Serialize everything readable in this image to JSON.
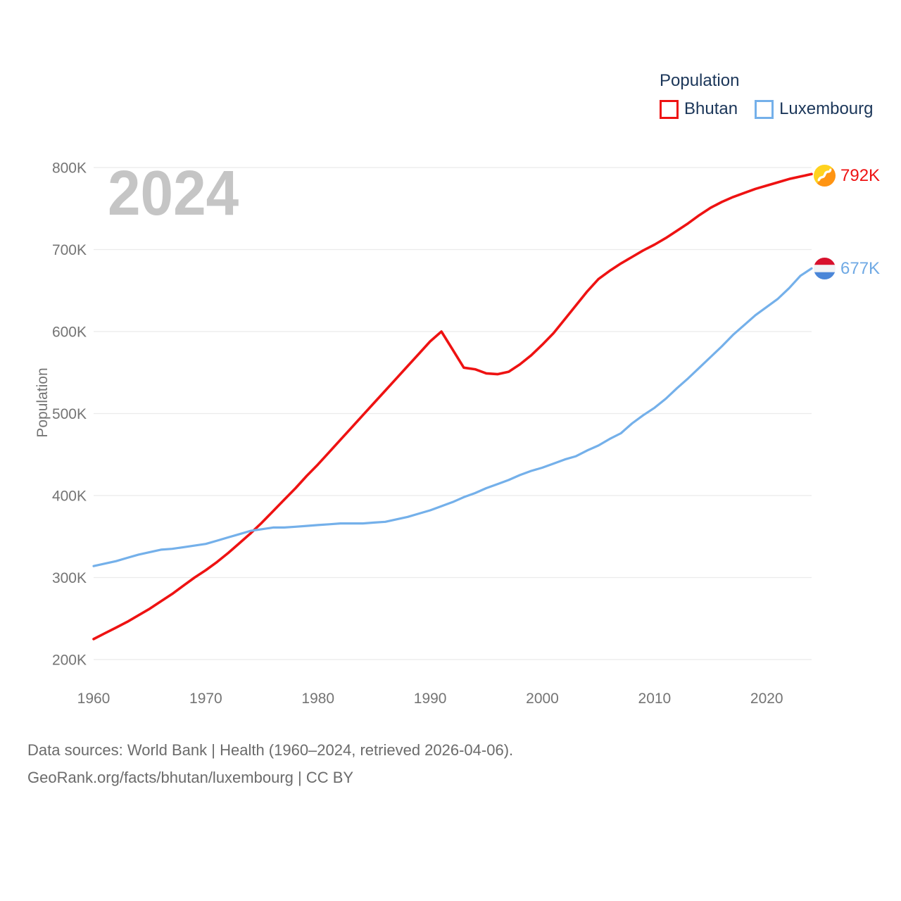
{
  "legend": {
    "title": "Population",
    "items": [
      {
        "label": "Bhutan",
        "color": "#ee1212"
      },
      {
        "label": "Luxembourg",
        "color": "#74b0ea"
      }
    ]
  },
  "watermark": "2024",
  "y_axis": {
    "title": "Population"
  },
  "end_labels": [
    {
      "series": "Bhutan",
      "text": "792K",
      "color": "#ee1212",
      "flag": "bhutan-flag"
    },
    {
      "series": "Luxembourg",
      "text": "677K",
      "color": "#6fa9e4",
      "flag": "luxembourg-flag"
    }
  ],
  "footer": {
    "line1": "Data sources: World Bank | Health (1960–2024, retrieved 2026-04-06).",
    "line2": "GeoRank.org/facts/bhutan/luxembourg | CC BY"
  },
  "chart_data": {
    "type": "line",
    "title": "Population",
    "watermark_year": "2024",
    "ylabel": "Population",
    "xlabel": "",
    "units": "persons, thousands (K)",
    "grid": "horizontal",
    "legend_position": "top-right",
    "x_range": [
      1960,
      2024
    ],
    "ylim_thousands": [
      200,
      800
    ],
    "y_ticks_thousands": [
      200,
      300,
      400,
      500,
      600,
      700,
      800
    ],
    "y_tick_labels": [
      "200K",
      "300K",
      "400K",
      "500K",
      "600K",
      "700K",
      "800K"
    ],
    "x_ticks": [
      1960,
      1970,
      1980,
      1990,
      2000,
      2010,
      2020
    ],
    "x": [
      1960,
      1961,
      1962,
      1963,
      1964,
      1965,
      1966,
      1967,
      1968,
      1969,
      1970,
      1971,
      1972,
      1973,
      1974,
      1975,
      1976,
      1977,
      1978,
      1979,
      1980,
      1981,
      1982,
      1983,
      1984,
      1985,
      1986,
      1987,
      1988,
      1989,
      1990,
      1991,
      1992,
      1993,
      1994,
      1995,
      1996,
      1997,
      1998,
      1999,
      2000,
      2001,
      2002,
      2003,
      2004,
      2005,
      2006,
      2007,
      2008,
      2009,
      2010,
      2011,
      2012,
      2013,
      2014,
      2015,
      2016,
      2017,
      2018,
      2019,
      2020,
      2021,
      2022,
      2023,
      2024
    ],
    "series": [
      {
        "name": "Bhutan",
        "color": "#ee1212",
        "line_width": 3.6,
        "end_label": "792K",
        "end_value_thousands": 792,
        "values_thousands": [
          225,
          232,
          239,
          246,
          254,
          262,
          271,
          280,
          290,
          300,
          309,
          319,
          330,
          342,
          354,
          367,
          381,
          395,
          409,
          424,
          438,
          453,
          468,
          483,
          498,
          513,
          528,
          543,
          558,
          573,
          588,
          600,
          578,
          556,
          554,
          549,
          548,
          551,
          560,
          571,
          584,
          598,
          615,
          632,
          649,
          664,
          674,
          683,
          691,
          699,
          706,
          714,
          723,
          732,
          742,
          751,
          758,
          764,
          769,
          774,
          778,
          782,
          786,
          789,
          792
        ]
      },
      {
        "name": "Luxembourg",
        "color": "#74b0ea",
        "line_width": 3.2,
        "end_label": "677K",
        "end_value_thousands": 677,
        "values_thousands": [
          314,
          317,
          320,
          324,
          328,
          331,
          334,
          335,
          337,
          339,
          341,
          345,
          349,
          353,
          357,
          359,
          361,
          361,
          362,
          363,
          364,
          365,
          366,
          366,
          366,
          367,
          368,
          371,
          374,
          378,
          382,
          387,
          392,
          398,
          403,
          409,
          414,
          419,
          425,
          430,
          434,
          439,
          444,
          448,
          455,
          461,
          469,
          476,
          488,
          498,
          507,
          518,
          531,
          543,
          556,
          569,
          582,
          596,
          608,
          620,
          630,
          640,
          653,
          668,
          677
        ]
      }
    ]
  }
}
